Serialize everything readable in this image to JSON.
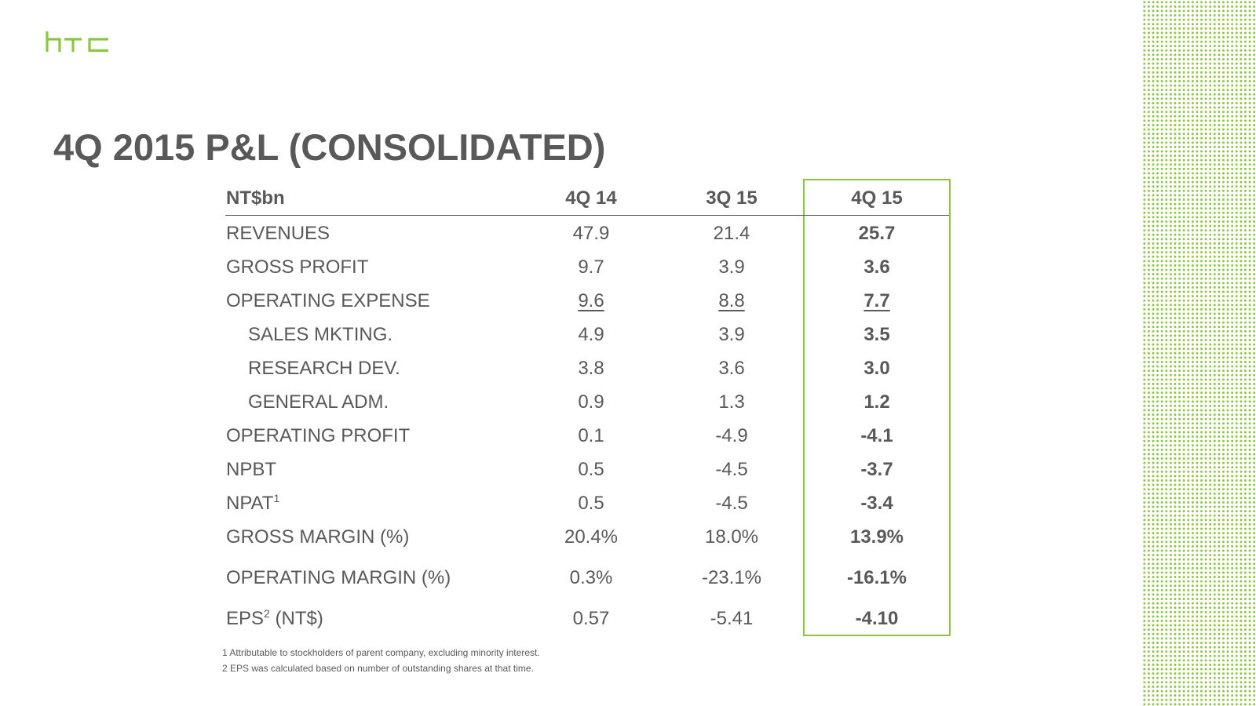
{
  "logo": "htc",
  "title": "4Q 2015 P&L (CONSOLIDATED)",
  "header": {
    "unit": "NT$bn",
    "cols": [
      "4Q 14",
      "3Q 15",
      "4Q 15"
    ]
  },
  "rows": [
    {
      "label": "REVENUES",
      "values": [
        "47.9",
        "21.4",
        "25.7"
      ]
    },
    {
      "label": "GROSS PROFIT",
      "values": [
        "9.7",
        "3.9",
        "3.6"
      ]
    },
    {
      "label": "OPERATING EXPENSE",
      "values": [
        "9.6",
        "8.8",
        "7.7"
      ]
    },
    {
      "label": "SALES MKTING.",
      "values": [
        "4.9",
        "3.9",
        "3.5"
      ]
    },
    {
      "label": "RESEARCH DEV.",
      "values": [
        "3.8",
        "3.6",
        "3.0"
      ]
    },
    {
      "label": "GENERAL ADM.",
      "values": [
        "0.9",
        "1.3",
        "1.2"
      ]
    },
    {
      "label": "OPERATING PROFIT",
      "values": [
        "0.1",
        "-4.9",
        "-4.1"
      ]
    },
    {
      "label": "NPBT",
      "values": [
        "0.5",
        "-4.5",
        "-3.7"
      ]
    },
    {
      "label": "NPAT",
      "sup": "1",
      "values": [
        "0.5",
        "-4.5",
        "-3.4"
      ]
    },
    {
      "label": "GROSS MARGIN (%)",
      "values": [
        "20.4%",
        "18.0%",
        "13.9%"
      ]
    },
    {
      "label": "OPERATING MARGIN (%)",
      "values": [
        "0.3%",
        "-23.1%",
        "-16.1%"
      ]
    },
    {
      "label": "EPS",
      "sup": "2",
      "suffix": " (NT$)",
      "values": [
        "0.57",
        "-5.41",
        "-4.10"
      ]
    }
  ],
  "footnotes": [
    "1 Attributable to stockholders of parent company, excluding minority interest.",
    "2 EPS was calculated based on number of outstanding shares at that time."
  ],
  "colors": {
    "accent": "#8cc63f",
    "text": "#595959"
  }
}
